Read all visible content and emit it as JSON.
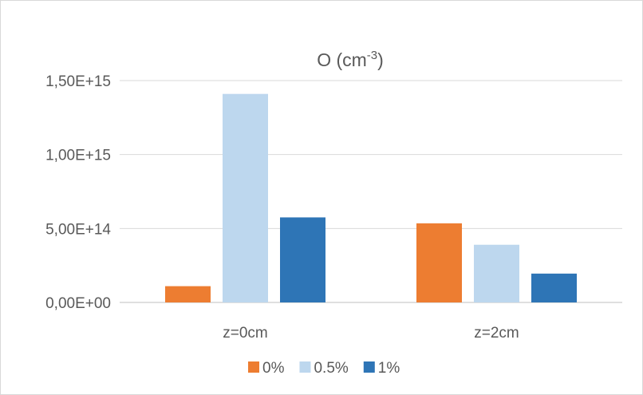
{
  "chart_data": {
    "type": "bar",
    "title": "O (cm",
    "title_superscript": "-3",
    "title_suffix": ")",
    "xlabel": "",
    "ylabel": "",
    "categories": [
      "z=0cm",
      "z=2cm"
    ],
    "series": [
      {
        "name": "0%",
        "color": "#ed7d31",
        "values": [
          110000000000000.0,
          535000000000000.0
        ]
      },
      {
        "name": "0.5%",
        "color": "#bdd7ee",
        "values": [
          1410000000000000.0,
          390000000000000.0
        ]
      },
      {
        "name": "1%",
        "color": "#2e75b6",
        "values": [
          575000000000000.0,
          195000000000000.0
        ]
      }
    ],
    "ylim": [
      0,
      1500000000000000.0
    ],
    "yticks": [
      0,
      500000000000000.0,
      1000000000000000.0,
      1500000000000000.0
    ],
    "ytick_labels": [
      "0,00E+00",
      "5,00E+14",
      "1,00E+15",
      "1,50E+15"
    ],
    "grid": true,
    "legend_position": "bottom"
  }
}
